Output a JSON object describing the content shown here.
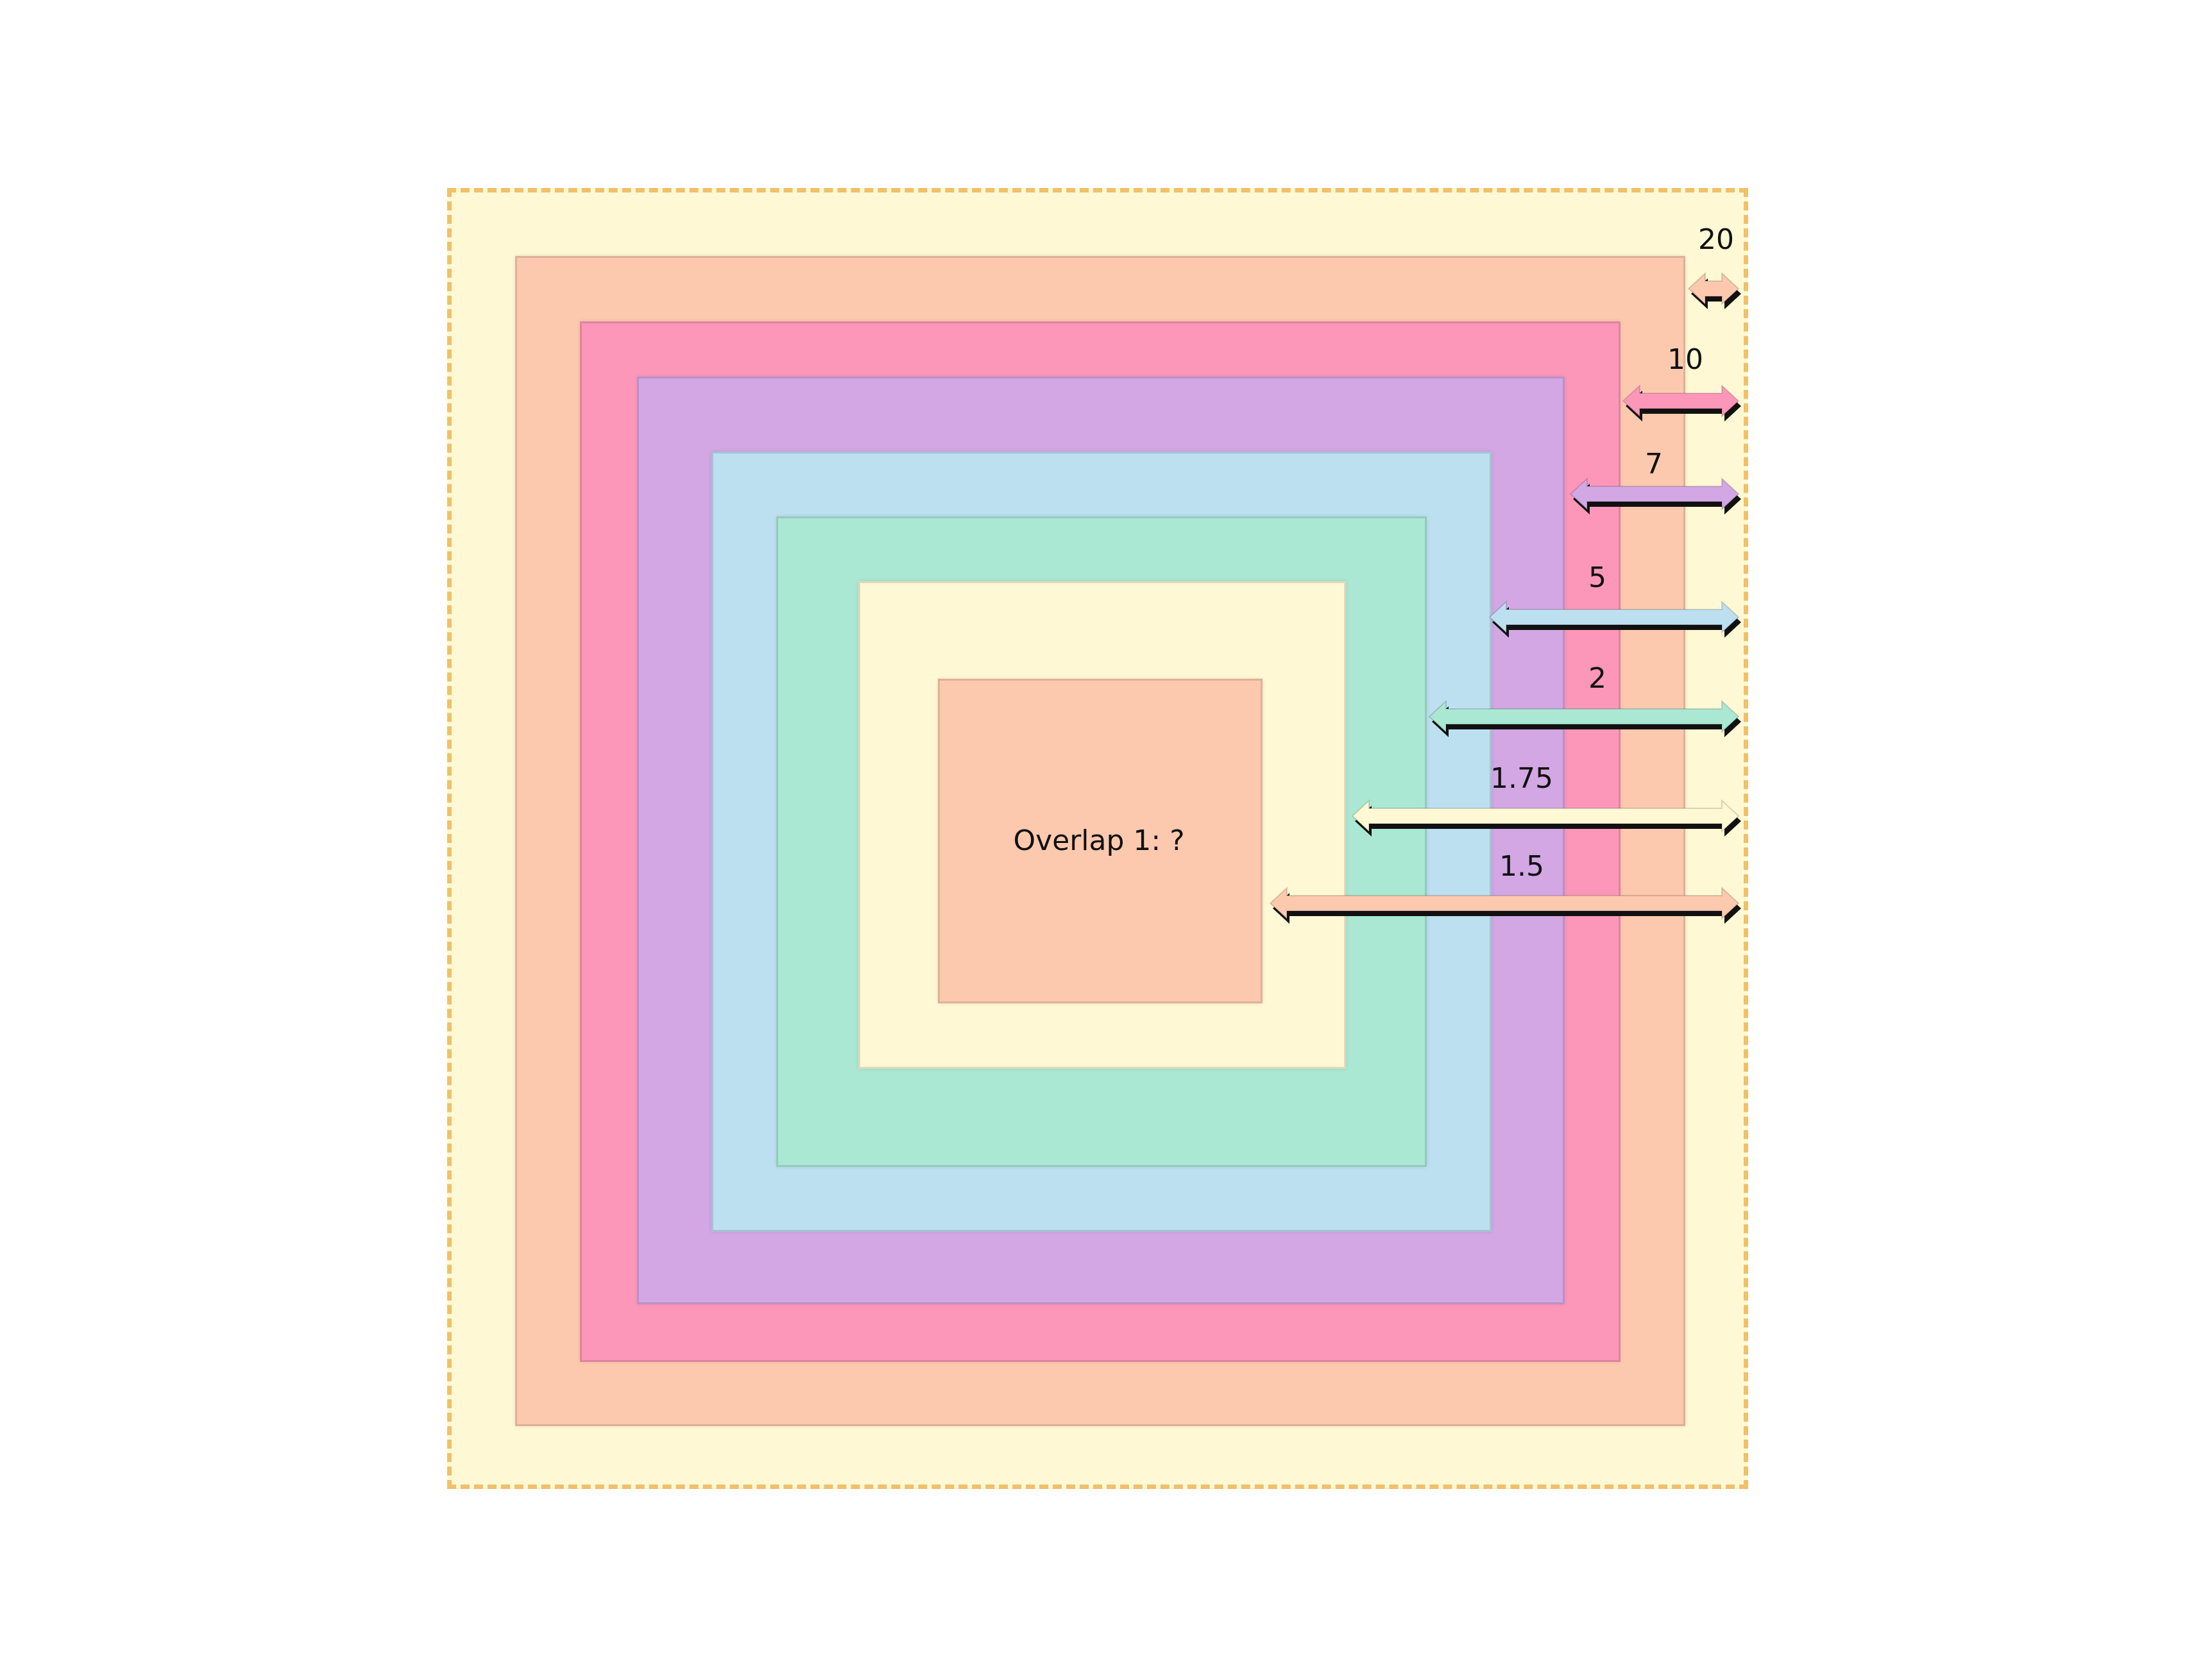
{
  "diagram": {
    "center_label": "Overlap 1: ?",
    "frame_color": "#f0c06a",
    "levels": [
      {
        "label": "20",
        "fill": "#fdc9ae",
        "value": 20
      },
      {
        "label": "10",
        "fill": "#fd97ba",
        "value": 10
      },
      {
        "label": "7",
        "fill": "#d2a7e4",
        "value": 7
      },
      {
        "label": "5",
        "fill": "#bde0f1",
        "value": 5
      },
      {
        "label": "2",
        "fill": "#aae8d3",
        "value": 2
      },
      {
        "label": "1.75",
        "fill": "#fff8d4",
        "value": 1.75
      },
      {
        "label": "1.5",
        "fill": "#fdc9ae",
        "value": 1.5
      }
    ],
    "outer_fill": "#fff8d4"
  }
}
